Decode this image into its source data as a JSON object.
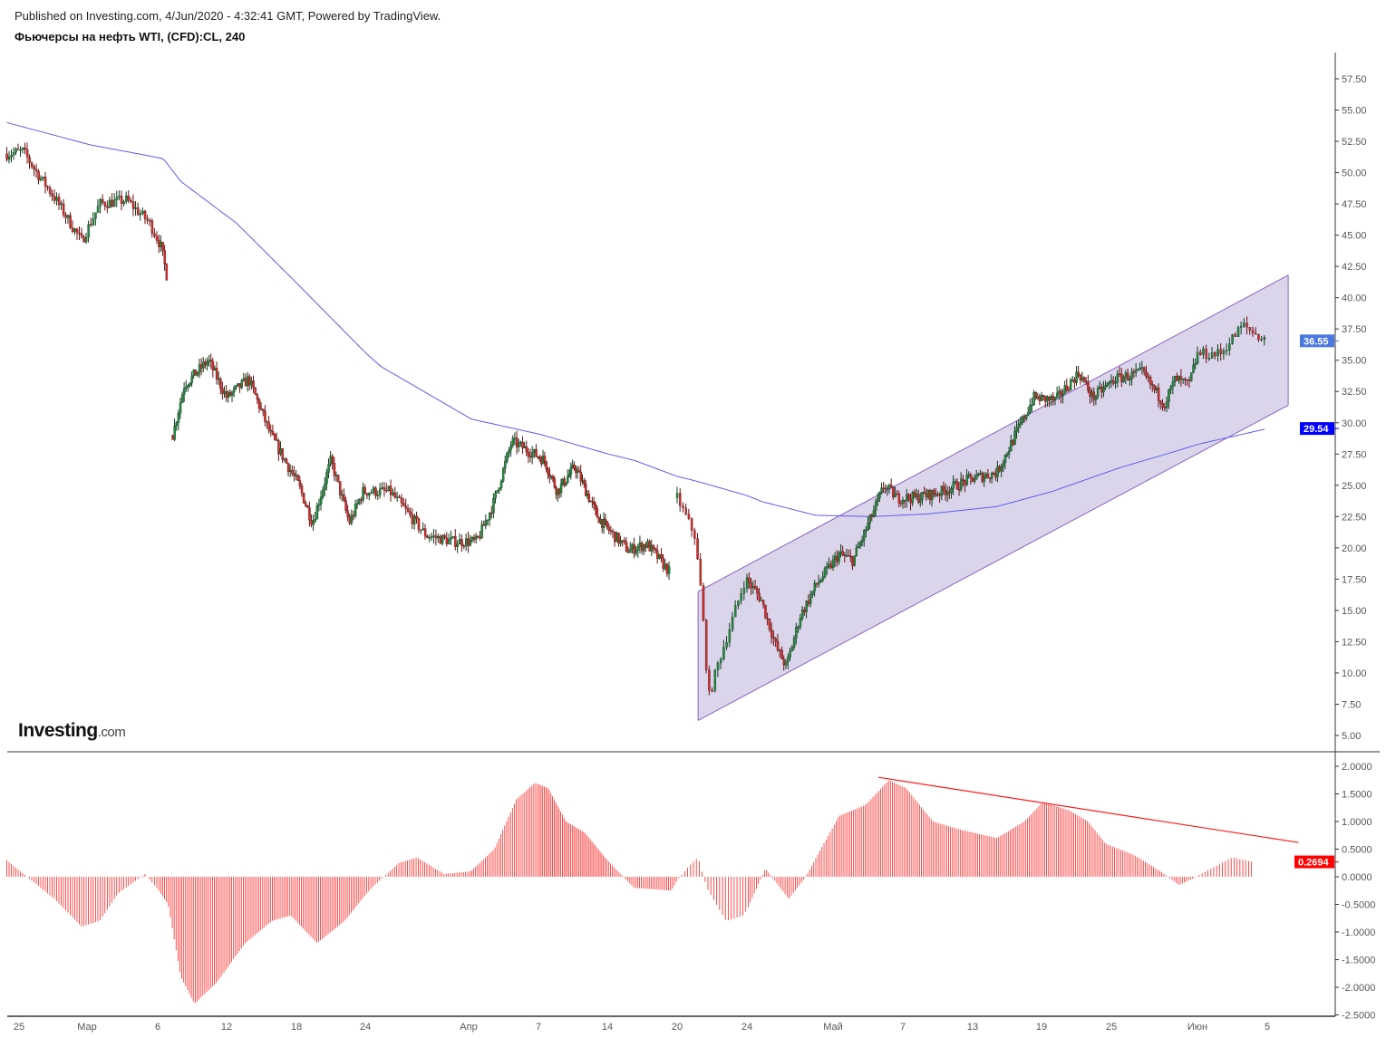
{
  "header": {
    "published": "Published on Investing.com, 4/Jun/2020 - 4:32:41 GMT, Powered by TradingView.",
    "title": "Фьючерсы на нефть WTI, (CFD):CL, 240"
  },
  "logo": {
    "main": "Investing",
    "suffix": ".com"
  },
  "chart_data": [
    {
      "type": "candlestick",
      "title": "Фьючерсы на нефть WTI, (CFD):CL, 240",
      "x_unit": "days since 25 Feb 2020",
      "x_ticks": [
        {
          "day": 0,
          "label": "25"
        },
        {
          "day": 5,
          "label": "Мар"
        },
        {
          "day": 10,
          "label": "6"
        },
        {
          "day": 16,
          "label": "12"
        },
        {
          "day": 22,
          "label": "18"
        },
        {
          "day": 28,
          "label": "24"
        },
        {
          "day": 36,
          "label": "Апр"
        },
        {
          "day": 42,
          "label": "7"
        },
        {
          "day": 49,
          "label": "14"
        },
        {
          "day": 55,
          "label": "20"
        },
        {
          "day": 59,
          "label": "24"
        },
        {
          "day": 66,
          "label": "Май"
        },
        {
          "day": 72,
          "label": "7"
        },
        {
          "day": 78,
          "label": "13"
        },
        {
          "day": 84,
          "label": "19"
        },
        {
          "day": 90,
          "label": "25"
        },
        {
          "day": 97,
          "label": "Июн"
        },
        {
          "day": 101,
          "label": "5"
        }
      ],
      "ylim": [
        3.5,
        60
      ],
      "y_ticks": [
        "57.50",
        "55.00",
        "52.50",
        "50.00",
        "47.50",
        "45.00",
        "42.50",
        "40.00",
        "37.50",
        "35.00",
        "32.50",
        "30.00",
        "27.50",
        "25.00",
        "22.50",
        "20.00",
        "17.50",
        "15.00",
        "12.50",
        "10.00",
        "7.50",
        "5.00"
      ],
      "price_segments": [
        [
          [
            -0.9,
            51.5
          ],
          [
            0.3,
            51.7
          ],
          [
            1.3,
            50
          ],
          [
            2.6,
            48
          ],
          [
            4.6,
            44.5
          ],
          [
            5.9,
            47.5
          ],
          [
            7.8,
            47.8
          ],
          [
            9.4,
            46
          ],
          [
            10.3,
            44
          ],
          [
            10.9,
            41.2
          ]
        ],
        [
          [
            11.3,
            29
          ],
          [
            12.3,
            33
          ],
          [
            14.4,
            35
          ],
          [
            16,
            32
          ],
          [
            17.9,
            33.5
          ],
          [
            19.8,
            29
          ],
          [
            22.2,
            25
          ],
          [
            23.4,
            22
          ],
          [
            25,
            27
          ],
          [
            26.6,
            22
          ],
          [
            27.8,
            24.5
          ],
          [
            29.9,
            24.5
          ],
          [
            32.7,
            21
          ],
          [
            34.8,
            20.5
          ],
          [
            36.7,
            20.5
          ],
          [
            38.1,
            23.5
          ],
          [
            39.7,
            28.5
          ],
          [
            42.6,
            27
          ],
          [
            43.9,
            24.5
          ],
          [
            45.7,
            26.5
          ],
          [
            48,
            22.5
          ],
          [
            50.8,
            19.8
          ],
          [
            52.4,
            20.3
          ],
          [
            54.4,
            18
          ]
        ],
        [
          [
            55,
            24
          ],
          [
            56,
            21
          ],
          [
            56.4,
            16
          ],
          [
            56.8,
            8
          ],
          [
            57.4,
            11
          ],
          [
            58.1,
            14
          ],
          [
            58.9,
            17.5
          ],
          [
            60.1,
            16
          ],
          [
            61.4,
            12
          ],
          [
            62.2,
            10.5
          ],
          [
            63.3,
            14.5
          ],
          [
            64.6,
            17
          ],
          [
            66.5,
            19.5
          ],
          [
            67.7,
            19
          ],
          [
            69.3,
            22.5
          ],
          [
            70.4,
            25
          ],
          [
            71.5,
            24
          ],
          [
            73.1,
            24
          ],
          [
            75.4,
            24.5
          ],
          [
            77.8,
            25.5
          ],
          [
            80.1,
            26
          ],
          [
            81.7,
            29
          ],
          [
            83.3,
            32
          ],
          [
            85.2,
            31.8
          ],
          [
            87.2,
            34
          ],
          [
            88.4,
            32
          ],
          [
            90.3,
            33.5
          ],
          [
            92.5,
            34
          ],
          [
            94.3,
            31.5
          ],
          [
            95.2,
            33.5
          ],
          [
            96.3,
            33
          ],
          [
            97,
            35.5
          ],
          [
            98.3,
            35.5
          ],
          [
            99.6,
            37.8
          ],
          [
            100.9,
            36.55
          ]
        ]
      ],
      "moving_average": {
        "color": "#5b5bf0",
        "points": [
          [
            -0.9,
            54
          ],
          [
            5.3,
            52.2
          ],
          [
            10.5,
            51.1
          ],
          [
            12,
            49.3
          ],
          [
            16.8,
            46
          ],
          [
            22.2,
            41
          ],
          [
            29.2,
            34.5
          ],
          [
            36.2,
            30.3
          ],
          [
            42.5,
            29
          ],
          [
            51.3,
            27
          ],
          [
            56.2,
            25.3
          ],
          [
            60.2,
            23.7
          ],
          [
            64.6,
            22.6
          ],
          [
            69.3,
            22.5
          ],
          [
            74,
            22.7
          ],
          [
            80.1,
            23.3
          ],
          [
            84.9,
            24.5
          ],
          [
            91,
            26.5
          ],
          [
            95.5,
            27.8
          ],
          [
            100.9,
            29.5
          ]
        ],
        "last_value": "29.54"
      },
      "channel": {
        "fill": "#d9d3ea",
        "stroke": "#8a63c0",
        "upper": [
          [
            56.2,
            16.5
          ],
          [
            102.2,
            41.8
          ]
        ],
        "lower": [
          [
            56.2,
            6.2
          ],
          [
            102.2,
            31.4
          ]
        ]
      },
      "last_price": "36.55",
      "colors": {
        "up": "#1f8a3c",
        "down": "#d62828",
        "last_price_badge": "#4a77e0",
        "ma_badge": "#0000ff"
      }
    },
    {
      "type": "bar",
      "name": "oscillator histogram",
      "ylim": [
        -2.55,
        2.2
      ],
      "y_ticks": [
        "2.0000",
        "1.5000",
        "1.0000",
        "0.5000",
        "0.0000",
        "-0.5000",
        "-1.0000",
        "-1.5000",
        "-2.0000",
        "-2.5000"
      ],
      "points": [
        [
          -0.9,
          0.3
        ],
        [
          0.6,
          0
        ],
        [
          2.6,
          -0.4
        ],
        [
          4.6,
          -0.9
        ],
        [
          5.9,
          -0.8
        ],
        [
          7.2,
          -0.3
        ],
        [
          9.1,
          0.05
        ],
        [
          10.9,
          -0.5
        ],
        [
          12,
          -1.8
        ],
        [
          13.2,
          -2.3
        ],
        [
          15.2,
          -1.9
        ],
        [
          17.6,
          -1.2
        ],
        [
          19.9,
          -0.8
        ],
        [
          21.5,
          -0.7
        ],
        [
          23.8,
          -1.2
        ],
        [
          26.2,
          -0.8
        ],
        [
          28.5,
          -0.2
        ],
        [
          30.6,
          0.25
        ],
        [
          32,
          0.35
        ],
        [
          34.1,
          0.05
        ],
        [
          36.2,
          0.1
        ],
        [
          38.2,
          0.5
        ],
        [
          40.1,
          1.4
        ],
        [
          41.7,
          1.7
        ],
        [
          43,
          1.6
        ],
        [
          44.8,
          1.0
        ],
        [
          46.7,
          0.8
        ],
        [
          49,
          0.3
        ],
        [
          51.3,
          -0.2
        ],
        [
          54.5,
          -0.25
        ],
        [
          55.7,
          0.2
        ],
        [
          56.2,
          0.35
        ],
        [
          56.7,
          -0.2
        ],
        [
          57.8,
          -0.8
        ],
        [
          58.8,
          -0.7
        ],
        [
          60.5,
          0.15
        ],
        [
          62.4,
          -0.4
        ],
        [
          63.8,
          0
        ],
        [
          65,
          0.5
        ],
        [
          66.5,
          1.1
        ],
        [
          68.8,
          1.3
        ],
        [
          70.8,
          1.75
        ],
        [
          72.3,
          1.6
        ],
        [
          74.6,
          1.0
        ],
        [
          77,
          0.85
        ],
        [
          80.1,
          0.7
        ],
        [
          82.5,
          1.0
        ],
        [
          84.1,
          1.35
        ],
        [
          86.4,
          1.2
        ],
        [
          88,
          1.0
        ],
        [
          89.5,
          0.6
        ],
        [
          91.8,
          0.4
        ],
        [
          94,
          0.1
        ],
        [
          95.5,
          -0.15
        ],
        [
          96.9,
          0
        ],
        [
          99,
          0.35
        ],
        [
          100.2,
          0.27
        ]
      ],
      "trendline": [
        [
          69.9,
          1.8
        ],
        [
          102.8,
          0.62
        ]
      ],
      "last_value": "0.2694",
      "color": "#ff2020"
    }
  ]
}
